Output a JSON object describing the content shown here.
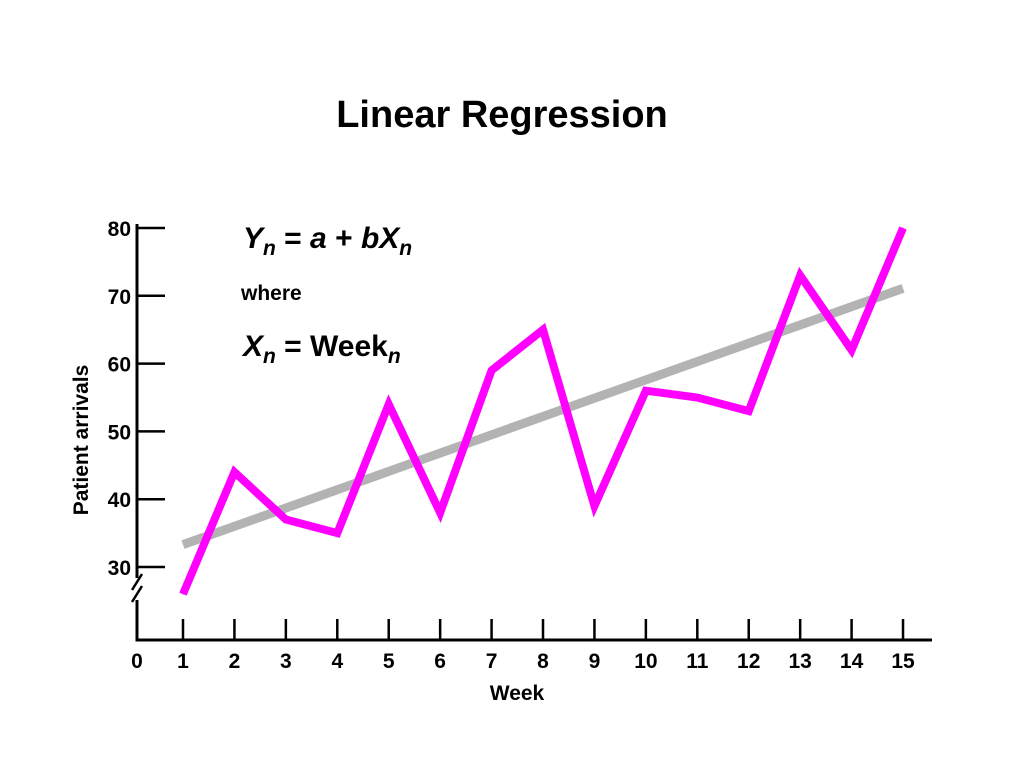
{
  "slide": {
    "title": "Linear Regression",
    "equation": {
      "line1": {
        "y": "Y",
        "n1": "n",
        "rest": " = ",
        "a": "a",
        "plus": " + ",
        "bx": "bX",
        "n2": "n"
      },
      "where": "where",
      "line2": {
        "x": "X",
        "n1": "n",
        "eq": " = Week",
        "n2": "n"
      }
    }
  },
  "colors": {
    "series": "#ff00ff",
    "regression": "#b3b3b3",
    "axis": "#000000"
  },
  "chart_data": {
    "type": "line",
    "title": "Linear Regression",
    "xlabel": "Week",
    "ylabel": "Patient arrivals",
    "x_ticks": [
      "0",
      "1",
      "2",
      "3",
      "4",
      "5",
      "6",
      "7",
      "8",
      "9",
      "10",
      "11",
      "12",
      "13",
      "14",
      "15"
    ],
    "y_ticks": [
      "30",
      "40",
      "50",
      "60",
      "70",
      "80"
    ],
    "xlim": [
      0,
      15
    ],
    "ylim": [
      30,
      80
    ],
    "y_axis_break": true,
    "grid": false,
    "series": [
      {
        "x": [
          1,
          2,
          3,
          4,
          5,
          6,
          7,
          8,
          9,
          10,
          11,
          12,
          13,
          14,
          15
        ],
        "values": [
          26,
          44,
          37,
          35,
          54,
          38,
          59,
          65,
          39,
          56,
          55,
          53,
          73,
          62,
          80
        ]
      }
    ],
    "regression_line": {
      "x": [
        1,
        15
      ],
      "values": [
        33.3,
        71.1
      ]
    }
  }
}
